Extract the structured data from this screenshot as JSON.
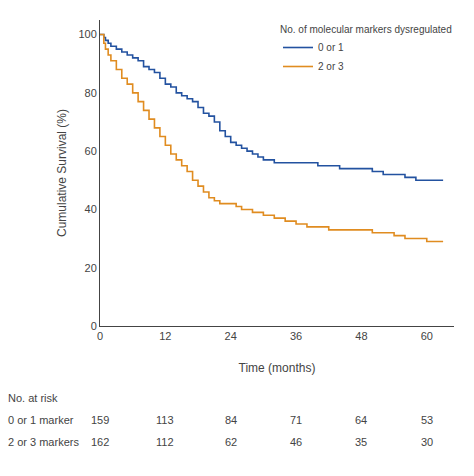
{
  "chart_data": {
    "type": "step",
    "xlabel": "Time (months)",
    "ylabel": "Cumulative Survival (%)",
    "legend_title": "No. of molecular markers dysregulated",
    "legend": "upper right",
    "grid": false,
    "xlim": [
      0,
      65
    ],
    "ylim": [
      0,
      105
    ],
    "xticks": [
      0,
      12,
      24,
      36,
      48,
      60
    ],
    "yticks": [
      0,
      20,
      40,
      60,
      80,
      100
    ],
    "series": [
      {
        "name": "0 or 1",
        "color": "#2352a0",
        "x": [
          0,
          0.3,
          0.7,
          1.0,
          1.5,
          2,
          3,
          4,
          5,
          6,
          7,
          8,
          9,
          10,
          11,
          12,
          13,
          14,
          15,
          16,
          17,
          18,
          19,
          20,
          21,
          22,
          23,
          24,
          25,
          26,
          27,
          28,
          29,
          30,
          32,
          34,
          36,
          38,
          40,
          42,
          44,
          46,
          48,
          50,
          52,
          54,
          56,
          58,
          60,
          63
        ],
        "values": [
          100,
          100,
          99,
          98,
          97,
          96,
          95,
          94,
          93,
          92,
          91,
          89,
          88,
          87,
          85,
          83,
          82,
          80,
          79,
          78,
          77,
          75,
          73,
          72,
          70,
          67,
          65,
          63,
          62,
          61,
          60,
          59,
          58,
          57,
          56,
          56,
          56,
          56,
          55,
          55,
          54,
          54,
          54,
          53,
          52,
          52,
          51,
          50,
          50,
          50
        ]
      },
      {
        "name": "2 or 3",
        "color": "#e08c20",
        "x": [
          0,
          0.3,
          0.7,
          1.0,
          1.5,
          2,
          3,
          4,
          5,
          6,
          7,
          8,
          9,
          10,
          11,
          12,
          13,
          14,
          15,
          16,
          17,
          18,
          19,
          20,
          21,
          22,
          23,
          24,
          25,
          26,
          27,
          28,
          30,
          32,
          34,
          36,
          38,
          40,
          42,
          44,
          46,
          48,
          50,
          52,
          54,
          56,
          58,
          60,
          63
        ],
        "values": [
          100,
          100,
          97,
          95,
          93,
          91,
          88,
          85,
          83,
          80,
          77,
          74,
          71,
          68,
          65,
          62,
          59,
          57,
          55,
          53,
          50,
          48,
          46,
          44,
          43,
          42,
          42,
          42,
          41,
          40,
          40,
          39,
          38,
          37,
          36,
          35,
          34,
          34,
          33,
          33,
          33,
          33,
          32,
          32,
          31,
          30,
          30,
          29,
          29
        ]
      }
    ],
    "risk_table": {
      "title": "No. at risk",
      "x": [
        0,
        12,
        24,
        36,
        48,
        60
      ],
      "rows": [
        {
          "name": "0 or 1 marker",
          "values": [
            159,
            113,
            84,
            71,
            64,
            53
          ]
        },
        {
          "name": "2 or 3 markers",
          "values": [
            162,
            112,
            62,
            46,
            35,
            30
          ]
        }
      ]
    }
  }
}
